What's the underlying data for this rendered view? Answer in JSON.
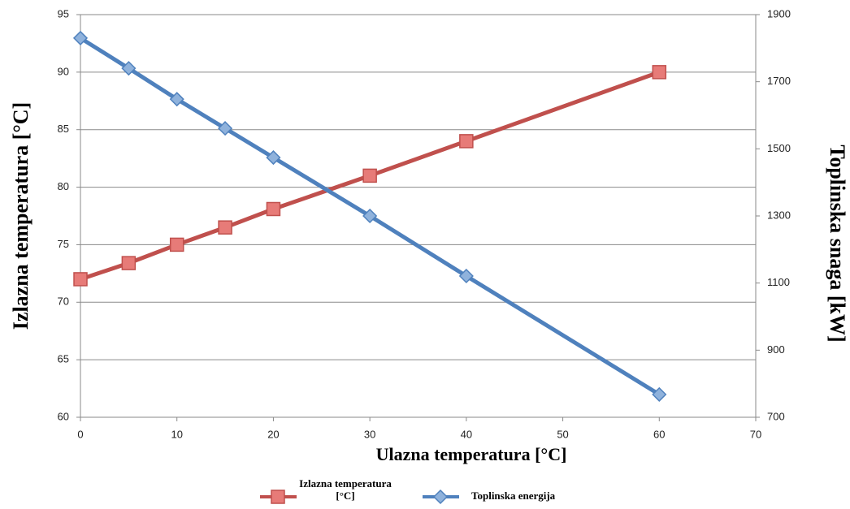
{
  "chart_data": {
    "type": "line",
    "x": [
      0,
      5,
      10,
      15,
      20,
      30,
      40,
      60
    ],
    "series": [
      {
        "name": "Izlazna temperatura [°C]",
        "color": "#c0504d",
        "marker_color": "#e77b78",
        "marker": "square",
        "values": [
          72,
          73.4,
          75,
          76.5,
          78.1,
          81,
          84,
          90
        ]
      },
      {
        "name": "Toplinska energija",
        "color": "#4f81bd",
        "marker_color": "#8fb2dc",
        "marker": "diamond",
        "axis": "y2",
        "values": [
          1830,
          1740,
          1648,
          1561,
          1474,
          1300,
          1121,
          768
        ]
      }
    ],
    "xlabel": "Ulazna temperatura [°C]",
    "ylabel": "Izlazna temperatura [°C]",
    "y2label": "Toplinska snaga [kW]",
    "xlim": [
      0,
      70
    ],
    "xticks": [
      0,
      10,
      20,
      30,
      40,
      50,
      60,
      70
    ],
    "ylim": [
      60,
      95
    ],
    "yticks": [
      60,
      65,
      70,
      75,
      80,
      85,
      90,
      95
    ],
    "y2lim": [
      700,
      1900
    ],
    "y2ticks": [
      700,
      900,
      1100,
      1300,
      1500,
      1700,
      1900
    ],
    "grid": true,
    "legend": "bottom"
  }
}
